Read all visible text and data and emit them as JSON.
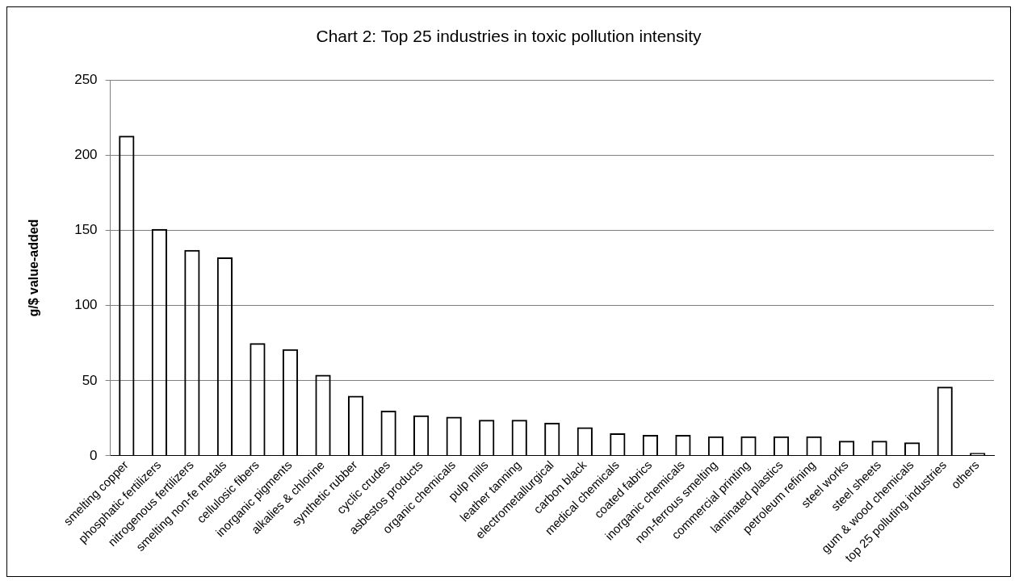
{
  "chart_data": {
    "type": "bar",
    "title": "Chart 2: Top 25 industries in toxic pollution intensity",
    "ylabel": "g/$ value-added",
    "categories": [
      "smelting copper",
      "phosphatic fertilizers",
      "nitrogenous fertilizers",
      "smelting non-fe metals",
      "cellulosic fibers",
      "inorganic pigments",
      "alkalies & chlorine",
      "synthetic rubber",
      "cyclic crudes",
      "asbestos products",
      "organic chemicals",
      "pulp mills",
      "leather tanning",
      "electrometallurgical",
      "carbon black",
      "medical chemicals",
      "coated fabrics",
      "inorganic chemicals",
      "non-ferrous smelting",
      "commercial printing",
      "laminated plastics",
      "petroleum refining",
      "steel works",
      "steel sheets",
      "gum & wood chemicals",
      "top 25 polluting industries",
      "others"
    ],
    "values": [
      213,
      151,
      137,
      132,
      75,
      71,
      54,
      40,
      30,
      27,
      26,
      24,
      24,
      22,
      19,
      15,
      14,
      14,
      13,
      13,
      13,
      13,
      10,
      10,
      9,
      46,
      2
    ],
    "color": "#000000",
    "ylim": [
      0,
      250
    ],
    "yticks": [
      0,
      50,
      100,
      150,
      200,
      250
    ],
    "grid": "y",
    "legend": false
  }
}
